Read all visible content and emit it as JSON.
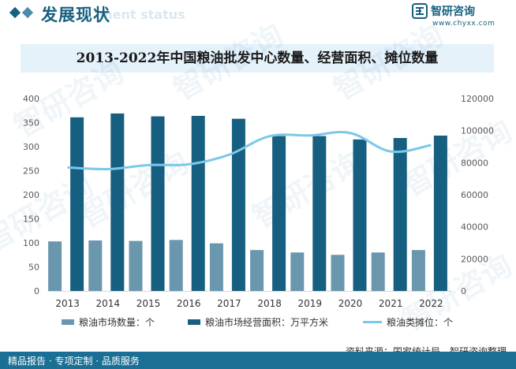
{
  "header": {
    "title": "发展现状",
    "subtitle": "ment status"
  },
  "brand": {
    "name": "智研咨询",
    "url": "www.chyxx.com",
    "watermark": "智研咨询"
  },
  "colors": {
    "header_accent": "#17607f",
    "title_band": "#e5f2fa",
    "footer": "#1b6f95"
  },
  "footer": {
    "left": "精品报告 · 专项定制 · 品质服务",
    "source": "资料来源：国家统计局，智研咨询整理"
  },
  "chart_data": {
    "type": "bar",
    "title": "2013-2022年中国粮油批发中心数量、经营面积、摊位数量",
    "categories": [
      "2013",
      "2014",
      "2015",
      "2016",
      "2017",
      "2018",
      "2019",
      "2020",
      "2021",
      "2022"
    ],
    "series": [
      {
        "name": "粮油市场数量：个",
        "type": "bar",
        "axis": "left",
        "color": "#6a97ae",
        "values": [
          103,
          105,
          104,
          106,
          99,
          85,
          80,
          75,
          80,
          85
        ]
      },
      {
        "name": "粮油市场经营面积：万平方米",
        "type": "bar",
        "axis": "left",
        "color": "#175f80",
        "values": [
          361,
          369,
          363,
          364,
          358,
          322,
          322,
          315,
          318,
          323
        ]
      },
      {
        "name": "粮油类摊位：个",
        "type": "line",
        "axis": "right",
        "color": "#7cc8e8",
        "values": [
          77000,
          76000,
          78500,
          79000,
          85000,
          96500,
          97000,
          98500,
          87000,
          91000
        ]
      }
    ],
    "yleft": {
      "min": 0,
      "max": 400,
      "step": 50
    },
    "yright": {
      "min": 0,
      "max": 120000,
      "step": 20000
    },
    "grid": false,
    "legend": "bottom"
  }
}
